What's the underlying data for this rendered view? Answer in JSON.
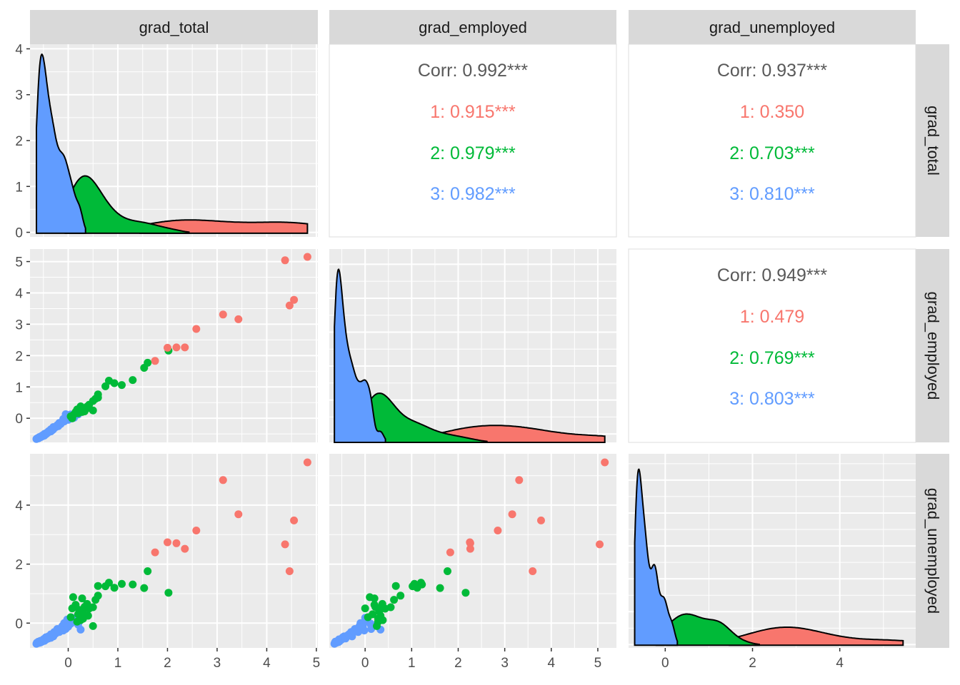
{
  "chart_data": {
    "type": "scatter",
    "matrix_type": "pairs",
    "variables": [
      "grad_total",
      "grad_employed",
      "grad_unemployed"
    ],
    "legend": "none",
    "grid": true,
    "colors": {
      "1": "#F8766D",
      "2": "#00BA38",
      "3": "#619CFF",
      "overall": "#595959",
      "panel_bg": "#EBEBEB",
      "strip_bg": "#D9D9D9"
    },
    "axis_ranges": {
      "grad_total": [
        -0.77,
        5.03
      ],
      "grad_employed": [
        -0.77,
        5.4
      ],
      "grad_unemployed": [
        -0.84,
        5.74
      ]
    },
    "density_yranges": {
      "grad_total": [
        -0.1,
        4.1
      ],
      "grad_employed": [
        -0.25,
        5.45
      ],
      "grad_unemployed": [
        -0.1,
        5.8
      ]
    },
    "ticks": {
      "grad_total_y": [
        "0",
        "1",
        "2",
        "3",
        "4"
      ],
      "grad_employed_y": [
        "0",
        "1",
        "2",
        "3",
        "4",
        "5"
      ],
      "grad_unemployed_y": [
        "0",
        "2",
        "4"
      ],
      "grad_total_x": [
        "0",
        "1",
        "2",
        "3",
        "4",
        "5"
      ],
      "grad_employed_x": [
        "0",
        "1",
        "2",
        "3",
        "4",
        "5"
      ],
      "grad_unemployed_x": [
        "0",
        "2",
        "4"
      ]
    },
    "correlations": [
      {
        "pair": [
          "grad_employed",
          "grad_total"
        ],
        "lines": [
          {
            "group": "overall",
            "text": "Corr: 0.992***"
          },
          {
            "group": "1",
            "text": "1: 0.915***"
          },
          {
            "group": "2",
            "text": "2: 0.979***"
          },
          {
            "group": "3",
            "text": "3: 0.982***"
          }
        ]
      },
      {
        "pair": [
          "grad_unemployed",
          "grad_total"
        ],
        "lines": [
          {
            "group": "overall",
            "text": "Corr: 0.937***"
          },
          {
            "group": "1",
            "text": "1: 0.350"
          },
          {
            "group": "2",
            "text": "2: 0.703***"
          },
          {
            "group": "3",
            "text": "3: 0.810***"
          }
        ]
      },
      {
        "pair": [
          "grad_unemployed",
          "grad_employed"
        ],
        "lines": [
          {
            "group": "overall",
            "text": "Corr: 0.949***"
          },
          {
            "group": "1",
            "text": "1: 0.479"
          },
          {
            "group": "2",
            "text": "2: 0.769***"
          },
          {
            "group": "3",
            "text": "3: 0.803***"
          }
        ]
      }
    ],
    "points": [
      {
        "g": "1",
        "t": 4.82,
        "e": 5.15,
        "u": 5.45
      },
      {
        "g": "1",
        "t": 4.37,
        "e": 5.04,
        "u": 2.67
      },
      {
        "g": "1",
        "t": 4.55,
        "e": 3.78,
        "u": 3.48
      },
      {
        "g": "1",
        "t": 4.46,
        "e": 3.6,
        "u": 1.76
      },
      {
        "g": "1",
        "t": 3.12,
        "e": 3.31,
        "u": 4.85
      },
      {
        "g": "1",
        "t": 3.43,
        "e": 3.16,
        "u": 3.69
      },
      {
        "g": "1",
        "t": 2.58,
        "e": 2.85,
        "u": 3.14
      },
      {
        "g": "1",
        "t": 2.0,
        "e": 2.25,
        "u": 2.74
      },
      {
        "g": "1",
        "t": 2.18,
        "e": 2.26,
        "u": 2.71
      },
      {
        "g": "1",
        "t": 2.35,
        "e": 2.26,
        "u": 2.52
      },
      {
        "g": "1",
        "t": 1.75,
        "e": 1.83,
        "u": 2.4
      },
      {
        "g": "2",
        "t": 2.02,
        "e": 2.16,
        "u": 1.03
      },
      {
        "g": "2",
        "t": 1.6,
        "e": 1.77,
        "u": 1.76
      },
      {
        "g": "2",
        "t": 1.53,
        "e": 1.61,
        "u": 1.19
      },
      {
        "g": "2",
        "t": 1.3,
        "e": 1.22,
        "u": 1.31
      },
      {
        "g": "2",
        "t": 1.08,
        "e": 1.06,
        "u": 1.33
      },
      {
        "g": "2",
        "t": 0.93,
        "e": 1.12,
        "u": 1.2
      },
      {
        "g": "2",
        "t": 0.82,
        "e": 1.2,
        "u": 1.37
      },
      {
        "g": "2",
        "t": 0.75,
        "e": 1.02,
        "u": 1.25
      },
      {
        "g": "2",
        "t": 0.6,
        "e": 0.66,
        "u": 1.26
      },
      {
        "g": "2",
        "t": 0.6,
        "e": 0.76,
        "u": 0.93
      },
      {
        "g": "2",
        "t": 0.55,
        "e": 0.62,
        "u": 0.79
      },
      {
        "g": "2",
        "t": 0.5,
        "e": 0.55,
        "u": 0.54
      },
      {
        "g": "2",
        "t": 0.5,
        "e": 0.25,
        "u": -0.1
      },
      {
        "g": "2",
        "t": 0.42,
        "e": 0.43,
        "u": 0.49
      },
      {
        "g": "2",
        "t": 0.4,
        "e": 0.33,
        "u": 0.25
      },
      {
        "g": "2",
        "t": 0.38,
        "e": 0.37,
        "u": 0.65
      },
      {
        "g": "2",
        "t": 0.33,
        "e": 0.22,
        "u": 0.55
      },
      {
        "g": "2",
        "t": 0.3,
        "e": 0.3,
        "u": 0.4
      },
      {
        "g": "2",
        "t": 0.3,
        "e": 0.28,
        "u": 0.15
      },
      {
        "g": "2",
        "t": 0.28,
        "e": 0.2,
        "u": 0.84
      },
      {
        "g": "2",
        "t": 0.25,
        "e": 0.38,
        "u": 0.1
      },
      {
        "g": "2",
        "t": 0.22,
        "e": 0.31,
        "u": 0.45
      },
      {
        "g": "2",
        "t": 0.2,
        "e": 0.16,
        "u": 0.3
      },
      {
        "g": "2",
        "t": 0.18,
        "e": 0.28,
        "u": 0.05
      },
      {
        "g": "2",
        "t": 0.15,
        "e": 0.2,
        "u": 0.62
      },
      {
        "g": "2",
        "t": 0.1,
        "e": 0.1,
        "u": 0.88
      },
      {
        "g": "2",
        "t": 0.05,
        "e": 0.06,
        "u": 0.2
      },
      {
        "g": "2",
        "t": 0.08,
        "e": 0.0,
        "u": 0.5
      },
      {
        "g": "3",
        "t": 0.25,
        "e": 0.33,
        "u": -0.22
      },
      {
        "g": "3",
        "t": 0.2,
        "e": 0.12,
        "u": -0.05
      },
      {
        "g": "3",
        "t": 0.12,
        "e": 0.02,
        "u": 0.05
      },
      {
        "g": "3",
        "t": 0.08,
        "e": 0.0,
        "u": 0.18
      },
      {
        "g": "3",
        "t": 0.05,
        "e": 0.12,
        "u": -0.02
      },
      {
        "g": "3",
        "t": 0.0,
        "e": -0.05,
        "u": -0.12
      },
      {
        "g": "3",
        "t": -0.02,
        "e": 0.05,
        "u": 0.12
      },
      {
        "g": "3",
        "t": -0.05,
        "e": 0.13,
        "u": -0.2
      },
      {
        "g": "3",
        "t": -0.08,
        "e": -0.1,
        "u": 0.0
      },
      {
        "g": "3",
        "t": -0.1,
        "e": -0.02,
        "u": -0.25
      },
      {
        "g": "3",
        "t": -0.12,
        "e": -0.12,
        "u": -0.1
      },
      {
        "g": "3",
        "t": -0.15,
        "e": -0.18,
        "u": -0.22
      },
      {
        "g": "3",
        "t": -0.18,
        "e": -0.15,
        "u": -0.3
      },
      {
        "g": "3",
        "t": -0.2,
        "e": -0.25,
        "u": -0.28
      },
      {
        "g": "3",
        "t": -0.22,
        "e": -0.22,
        "u": -0.2
      },
      {
        "g": "3",
        "t": -0.25,
        "e": -0.28,
        "u": -0.35
      },
      {
        "g": "3",
        "t": -0.28,
        "e": -0.3,
        "u": -0.3
      },
      {
        "g": "3",
        "t": -0.3,
        "e": -0.35,
        "u": -0.4
      },
      {
        "g": "3",
        "t": -0.3,
        "e": -0.28,
        "u": -0.45
      },
      {
        "g": "3",
        "t": -0.32,
        "e": -0.38,
        "u": -0.42
      },
      {
        "g": "3",
        "t": -0.35,
        "e": -0.35,
        "u": -0.38
      },
      {
        "g": "3",
        "t": -0.35,
        "e": -0.42,
        "u": -0.5
      },
      {
        "g": "3",
        "t": -0.38,
        "e": -0.4,
        "u": -0.46
      },
      {
        "g": "3",
        "t": -0.4,
        "e": -0.45,
        "u": -0.45
      },
      {
        "g": "3",
        "t": -0.4,
        "e": -0.42,
        "u": -0.52
      },
      {
        "g": "3",
        "t": -0.42,
        "e": -0.47,
        "u": -0.5
      },
      {
        "g": "3",
        "t": -0.44,
        "e": -0.5,
        "u": -0.55
      },
      {
        "g": "3",
        "t": -0.45,
        "e": -0.48,
        "u": -0.48
      },
      {
        "g": "3",
        "t": -0.46,
        "e": -0.52,
        "u": -0.57
      },
      {
        "g": "3",
        "t": -0.48,
        "e": -0.5,
        "u": -0.53
      },
      {
        "g": "3",
        "t": -0.48,
        "e": -0.55,
        "u": -0.6
      },
      {
        "g": "3",
        "t": -0.5,
        "e": -0.53,
        "u": -0.58
      },
      {
        "g": "3",
        "t": -0.5,
        "e": -0.56,
        "u": -0.55
      },
      {
        "g": "3",
        "t": -0.52,
        "e": -0.55,
        "u": -0.62
      },
      {
        "g": "3",
        "t": -0.53,
        "e": -0.58,
        "u": -0.6
      },
      {
        "g": "3",
        "t": -0.54,
        "e": -0.57,
        "u": -0.64
      },
      {
        "g": "3",
        "t": -0.55,
        "e": -0.6,
        "u": -0.62
      },
      {
        "g": "3",
        "t": -0.56,
        "e": -0.59,
        "u": -0.6
      },
      {
        "g": "3",
        "t": -0.57,
        "e": -0.61,
        "u": -0.66
      },
      {
        "g": "3",
        "t": -0.58,
        "e": -0.6,
        "u": -0.64
      },
      {
        "g": "3",
        "t": -0.59,
        "e": -0.63,
        "u": -0.67
      },
      {
        "g": "3",
        "t": -0.6,
        "e": -0.62,
        "u": -0.65
      },
      {
        "g": "3",
        "t": -0.6,
        "e": -0.64,
        "u": -0.63
      },
      {
        "g": "3",
        "t": -0.62,
        "e": -0.64,
        "u": -0.68
      },
      {
        "g": "3",
        "t": -0.63,
        "e": -0.65,
        "u": -0.66
      },
      {
        "g": "3",
        "t": -0.64,
        "e": -0.66,
        "u": -0.7
      }
    ]
  }
}
